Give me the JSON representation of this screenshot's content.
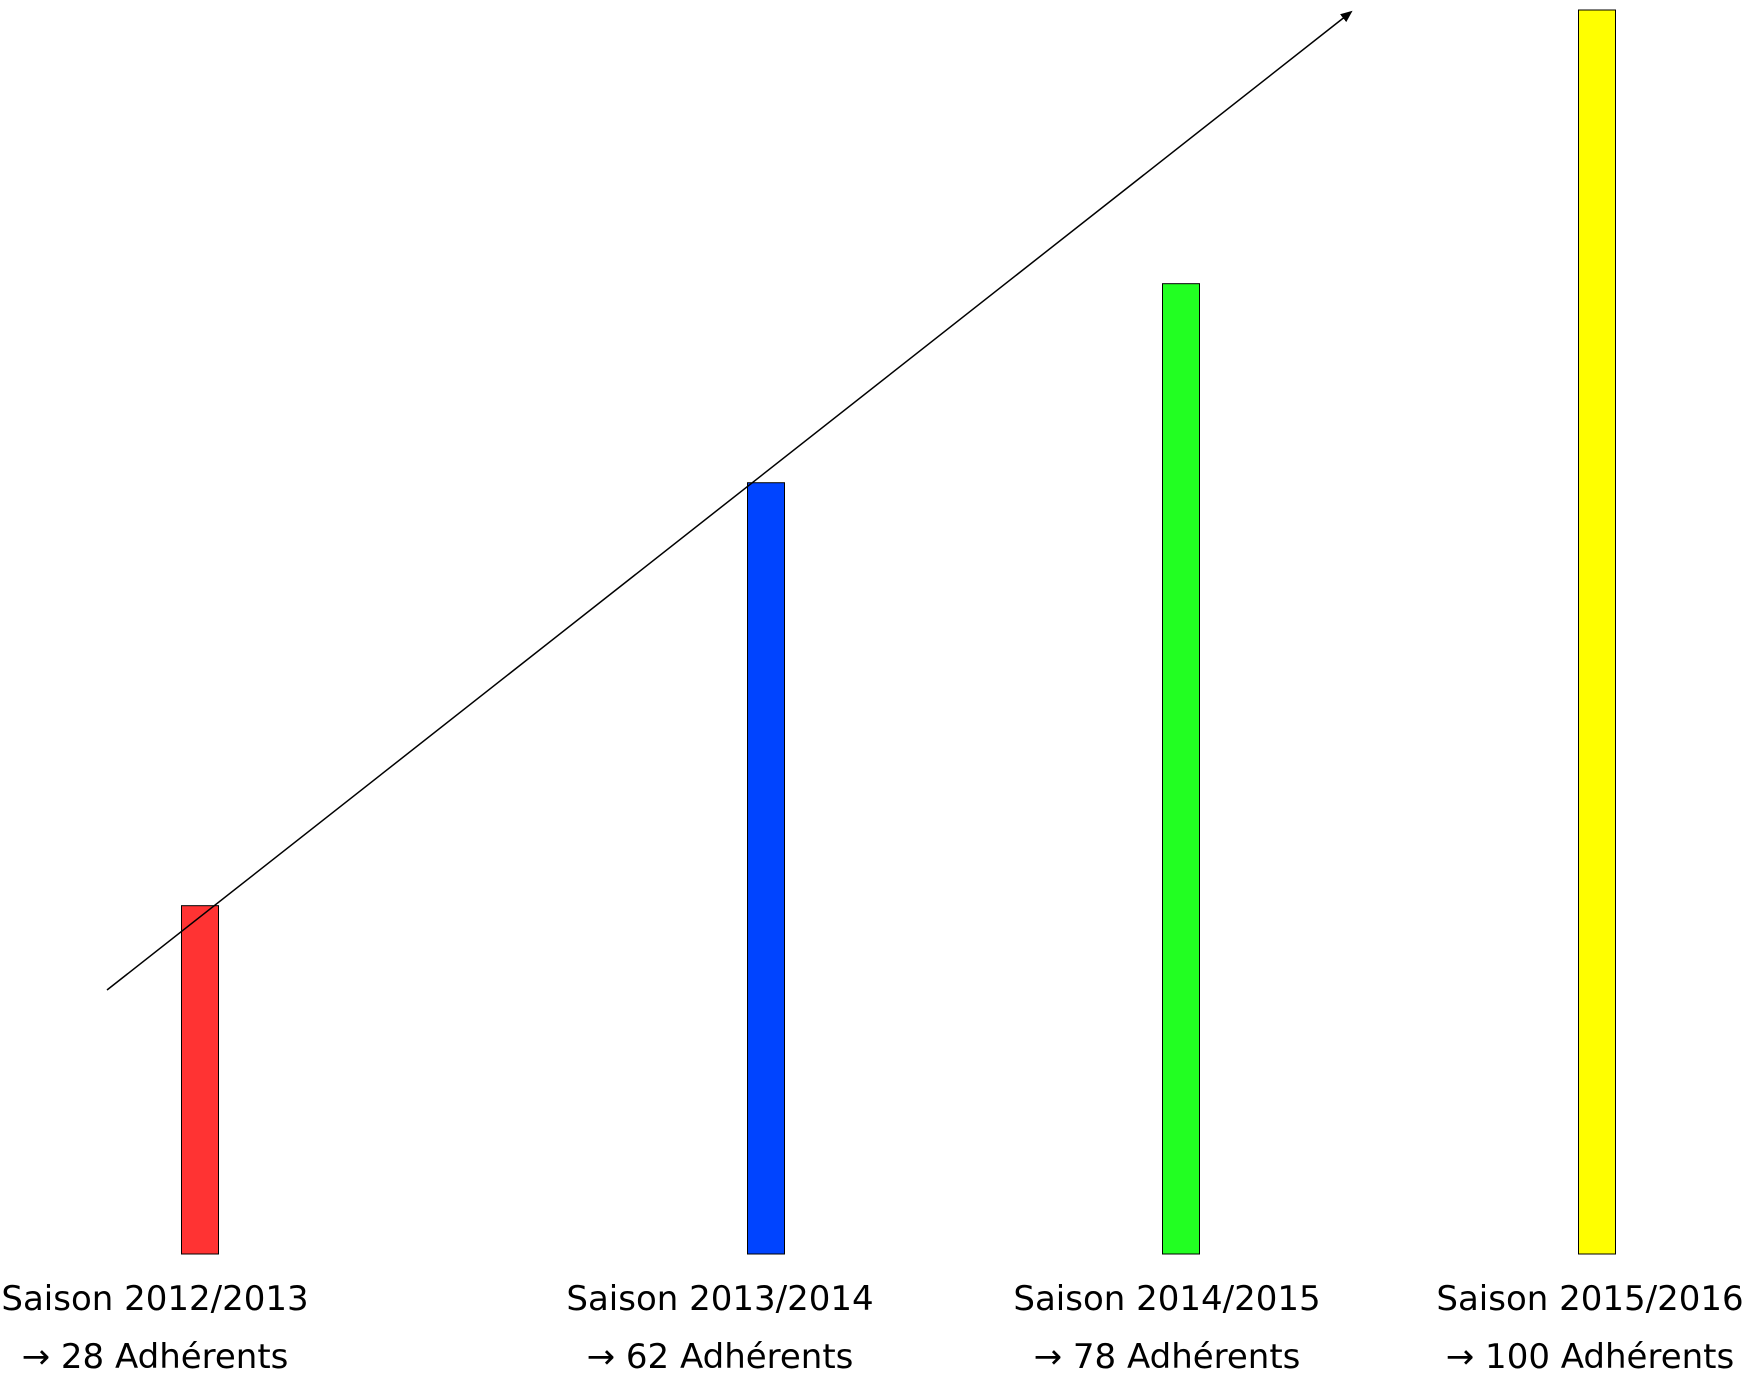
{
  "chart_data": {
    "type": "bar",
    "title": "",
    "xlabel": "",
    "ylabel": "",
    "ylim": [
      0,
      100
    ],
    "grid": false,
    "legend": "none",
    "categories": [
      "Saison 2012/2013",
      "Saison 2013/2014",
      "Saison 2014/2015",
      "Saison 2015/2016"
    ],
    "values": [
      28,
      62,
      78,
      100
    ],
    "value_labels": [
      "→  28 Adhérents",
      "→ 62 Adhérents",
      "→ 78 Adhérents",
      "→ 100 Adhérents"
    ],
    "colors": [
      "#ff3333",
      "#0044ff",
      "#22ff22",
      "#ffff00"
    ],
    "trend_arrow": true
  }
}
